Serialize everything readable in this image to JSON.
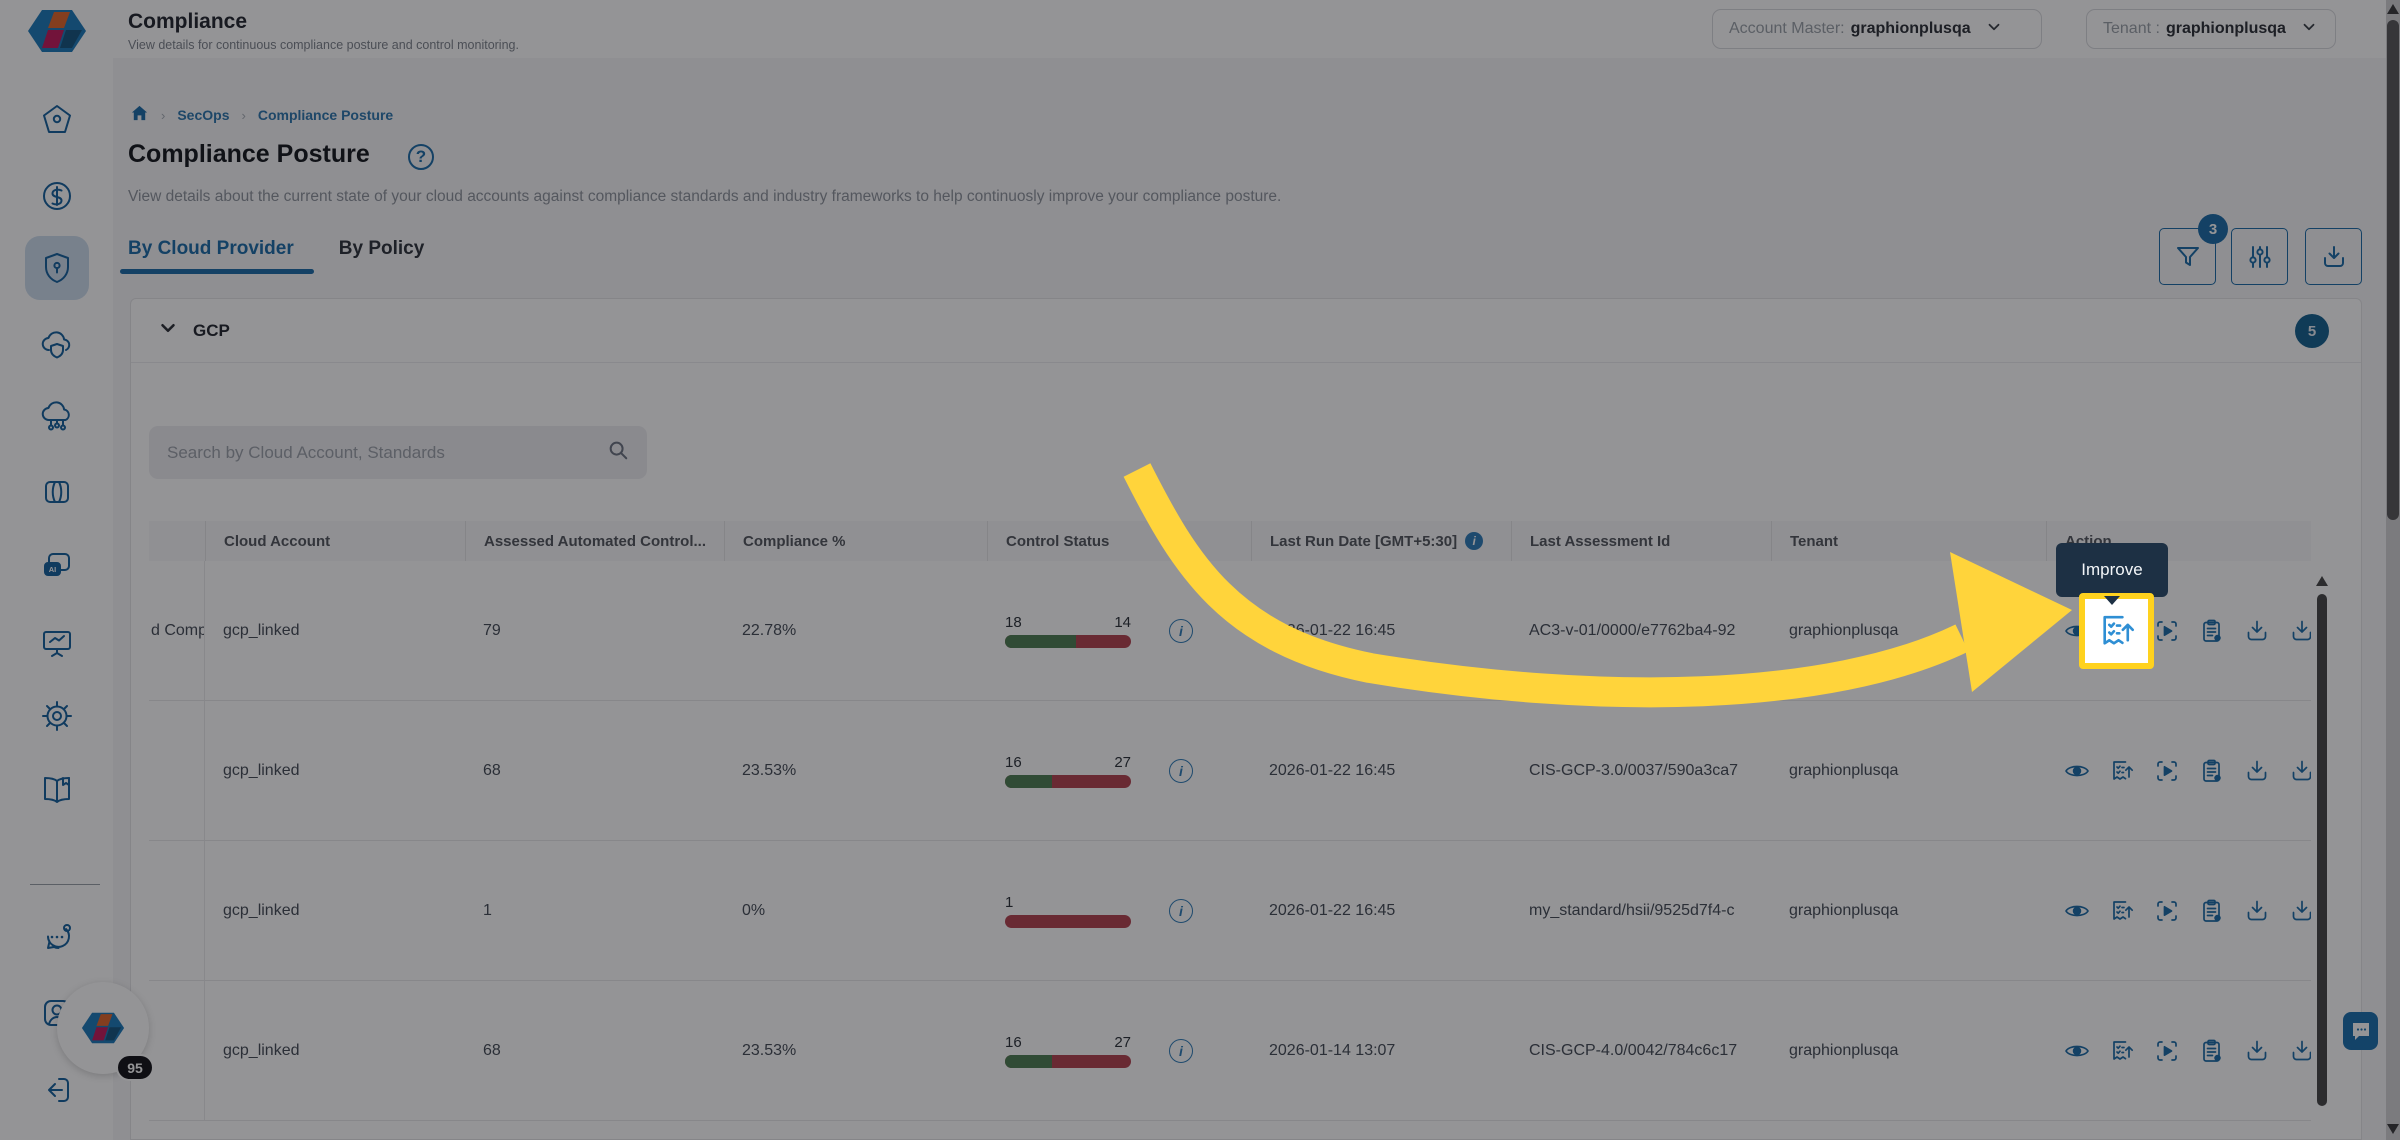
{
  "header": {
    "title": "Compliance",
    "subtitle": "View details for continuous compliance posture and control monitoring.",
    "account_master_label": "Account Master:",
    "account_master_value": "graphionplusqa",
    "tenant_label": "Tenant :",
    "tenant_value": "graphionplusqa"
  },
  "breadcrumb": {
    "sec_ops": "SecOps",
    "current": "Compliance Posture"
  },
  "page": {
    "title": "Compliance Posture",
    "help_glyph": "?",
    "description": "View details about the current state of your cloud accounts against compliance standards and industry frameworks to help continuosly improve your compliance posture."
  },
  "tabs": {
    "cloud_provider": "By Cloud Provider",
    "policy": "By Policy"
  },
  "toolbar": {
    "filter_badge": "3",
    "icons": [
      "filter",
      "column-settings",
      "download"
    ]
  },
  "group": {
    "name": "GCP",
    "badge": "5"
  },
  "search": {
    "placeholder": "Search by Cloud Account, Standards"
  },
  "table": {
    "columns": [
      "",
      "Cloud Account",
      "Assessed Automated Control...",
      "Compliance %",
      "Control Status",
      "Last Run Date [GMT+5:30]",
      "Last Assessment Id",
      "Tenant",
      "Action"
    ],
    "action_icons": [
      "view",
      "improve",
      "run-assessment",
      "assessment-report",
      "download",
      "download-report"
    ],
    "rows": [
      {
        "standard_fragment": "d Comp",
        "cloud_account": "gcp_linked",
        "assessed": "79",
        "compliance": "22.78%",
        "status_left": "18",
        "status_right": "14",
        "green_pct": 56.25,
        "last_run": "2026-01-22 16:45",
        "assessment_id": "AC3-v-01/0000/e7762ba4-92",
        "tenant": "graphionplusqa"
      },
      {
        "standard_fragment": "",
        "cloud_account": "gcp_linked",
        "assessed": "68",
        "compliance": "23.53%",
        "status_left": "16",
        "status_right": "27",
        "green_pct": 37.2,
        "last_run": "2026-01-22 16:45",
        "assessment_id": "CIS-GCP-3.0/0037/590a3ca7",
        "tenant": "graphionplusqa"
      },
      {
        "standard_fragment": "",
        "cloud_account": "gcp_linked",
        "assessed": "1",
        "compliance": "0%",
        "status_left": "1",
        "status_right": "",
        "green_pct": 0,
        "last_run": "2026-01-22 16:45",
        "assessment_id": "my_standard/hsii/9525d7f4-c",
        "tenant": "graphionplusqa"
      },
      {
        "standard_fragment": "",
        "cloud_account": "gcp_linked",
        "assessed": "68",
        "compliance": "23.53%",
        "status_left": "16",
        "status_right": "27",
        "green_pct": 37.2,
        "last_run": "2026-01-14 13:07",
        "assessment_id": "CIS-GCP-4.0/0042/784c6c17",
        "tenant": "graphionplusqa"
      }
    ]
  },
  "annotation": {
    "tooltip": "Improve"
  },
  "fab": {
    "badge": "95"
  },
  "colors": {
    "accent": "#1b6ca8",
    "pass_green": "#4e7d52",
    "fail_red": "#b2434f",
    "highlight_yellow": "#ffd21e",
    "tooltip_bg": "#1d3044"
  }
}
